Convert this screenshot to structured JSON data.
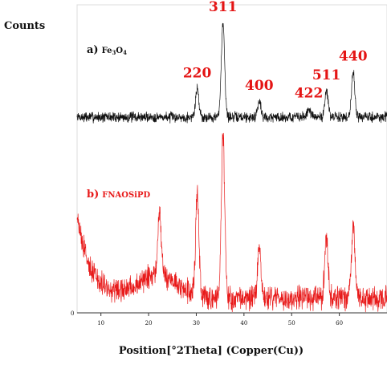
{
  "chart_data": {
    "type": "line",
    "ylabel": "Counts",
    "xlabel": "Position[°2Theta] (Copper(Cu))",
    "xlim": [
      5,
      70
    ],
    "y_ticks": [
      "0"
    ],
    "x_ticks": [
      10,
      20,
      30,
      40,
      50,
      60
    ],
    "colors": {
      "a": "#111111",
      "b": "#e81a1a",
      "peak_labels": "#e41414"
    },
    "series": [
      {
        "name_prefix": "a)",
        "name_main": "Fe",
        "name_sub1": "3",
        "name_mid": "O",
        "name_sub2": "4",
        "peaks": [
          {
            "x": 30.2,
            "y": 0.3
          },
          {
            "x": 35.6,
            "y": 1.0
          },
          {
            "x": 43.2,
            "y": 0.17
          },
          {
            "x": 53.6,
            "y": 0.09
          },
          {
            "x": 57.3,
            "y": 0.28
          },
          {
            "x": 62.9,
            "y": 0.48
          }
        ]
      },
      {
        "name_prefix": "b)",
        "name_main": "FNAOSiPD",
        "peaks": [
          {
            "x": 22.3,
            "y": 0.4
          },
          {
            "x": 30.2,
            "y": 0.6
          },
          {
            "x": 35.6,
            "y": 1.0
          },
          {
            "x": 43.2,
            "y": 0.3
          },
          {
            "x": 57.3,
            "y": 0.38
          },
          {
            "x": 62.9,
            "y": 0.44
          }
        ]
      }
    ],
    "annotations": [
      {
        "text": "220",
        "x": 30.2
      },
      {
        "text": "311",
        "x": 35.6
      },
      {
        "text": "400",
        "x": 43.2
      },
      {
        "text": "422",
        "x": 53.6
      },
      {
        "text": "511",
        "x": 57.3
      },
      {
        "text": "440",
        "x": 62.9
      }
    ]
  }
}
